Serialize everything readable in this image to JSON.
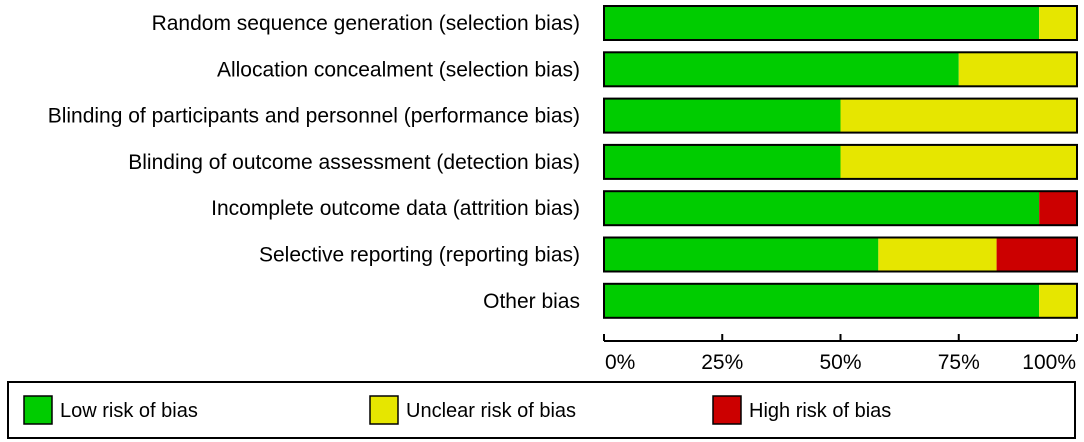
{
  "chart_data": {
    "type": "bar",
    "orientation": "horizontal",
    "stacked": true,
    "categories": [
      "Random sequence generation (selection bias)",
      "Allocation concealment (selection bias)",
      "Blinding of participants and personnel (performance bias)",
      "Blinding of outcome assessment (detection bias)",
      "Incomplete outcome data (attrition bias)",
      "Selective reporting (reporting bias)",
      "Other bias"
    ],
    "series": [
      {
        "name": "Low risk of bias",
        "color": "#00cc00",
        "values": [
          92,
          75,
          50,
          50,
          92,
          58,
          92
        ]
      },
      {
        "name": "Unclear risk of bias",
        "color": "#e6e600",
        "values": [
          8,
          25,
          50,
          50,
          0,
          25,
          8
        ]
      },
      {
        "name": "High risk of bias",
        "color": "#cc0000",
        "values": [
          0,
          0,
          0,
          0,
          8,
          17,
          0
        ]
      }
    ],
    "xlim": [
      0,
      100
    ],
    "xticks": [
      0,
      25,
      50,
      75,
      100
    ],
    "xtick_labels": [
      "0%",
      "25%",
      "50%",
      "75%",
      "100%"
    ],
    "legend_position": "bottom",
    "grid": false
  }
}
